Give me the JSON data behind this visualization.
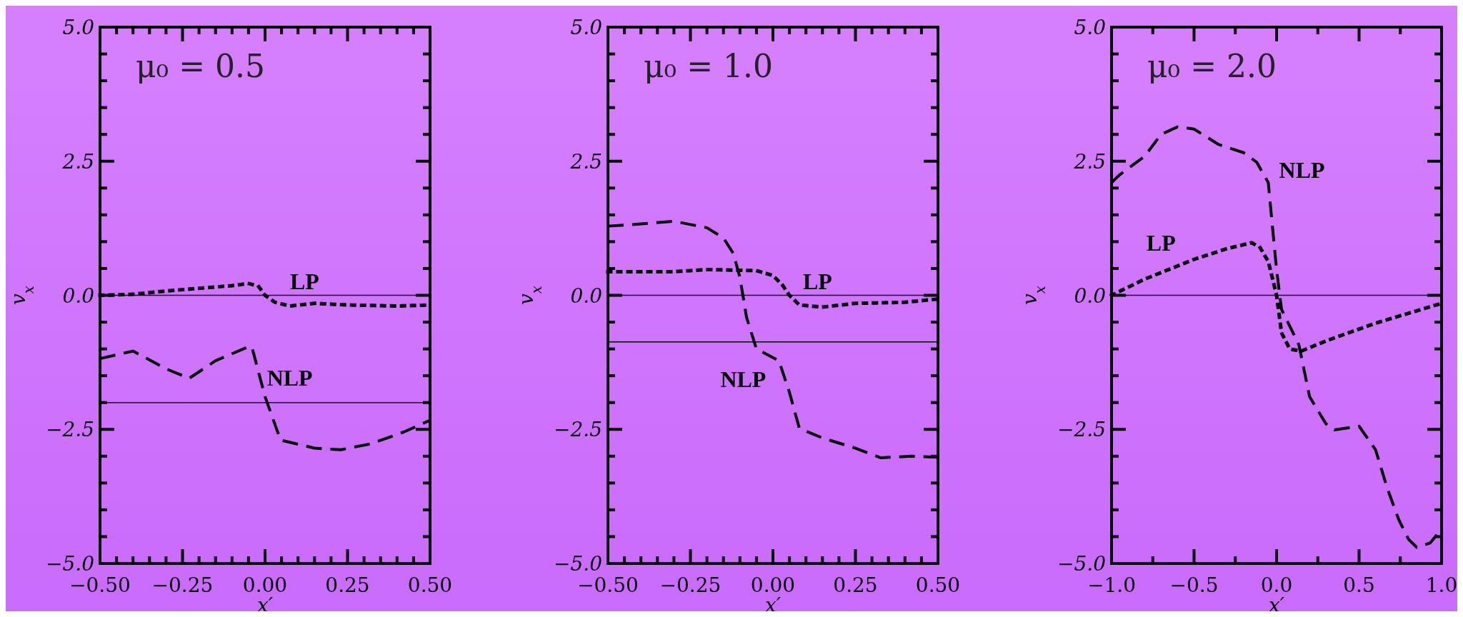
{
  "chart_data": [
    {
      "type": "line",
      "title": "μ₀ = 0.5",
      "xlabel": "x′",
      "ylabel": "v$_{x}$",
      "xlim": [
        -0.5,
        0.5
      ],
      "ylim": [
        -5,
        5
      ],
      "xticks": [
        {
          "value": -0.5,
          "label": "−0.50"
        },
        {
          "value": -0.45,
          "label": null
        },
        {
          "value": -0.4,
          "label": null
        },
        {
          "value": -0.35,
          "label": null
        },
        {
          "value": -0.3,
          "label": null
        },
        {
          "value": -0.25,
          "label": "−0.25"
        },
        {
          "value": -0.2,
          "label": null
        },
        {
          "value": -0.15,
          "label": null
        },
        {
          "value": -0.1,
          "label": null
        },
        {
          "value": -0.05,
          "label": null
        },
        {
          "value": 0,
          "label": "0.00"
        },
        {
          "value": 0.05,
          "label": null
        },
        {
          "value": 0.1,
          "label": null
        },
        {
          "value": 0.15,
          "label": null
        },
        {
          "value": 0.2,
          "label": null
        },
        {
          "value": 0.25,
          "label": "0.25"
        },
        {
          "value": 0.3,
          "label": null
        },
        {
          "value": 0.35,
          "label": null
        },
        {
          "value": 0.4,
          "label": null
        },
        {
          "value": 0.45,
          "label": null
        },
        {
          "value": 0.5,
          "label": "0.50"
        }
      ],
      "yticks": [
        {
          "value": -5,
          "label": "−5.0"
        },
        {
          "value": -4.5,
          "label": null
        },
        {
          "value": -4,
          "label": null
        },
        {
          "value": -3.5,
          "label": null
        },
        {
          "value": -3,
          "label": null
        },
        {
          "value": -2.5,
          "label": "−2.5"
        },
        {
          "value": -2,
          "label": null
        },
        {
          "value": -1.5,
          "label": null
        },
        {
          "value": -1,
          "label": null
        },
        {
          "value": -0.5,
          "label": null
        },
        {
          "value": 0,
          "label": "0.0"
        },
        {
          "value": 0.5,
          "label": null
        },
        {
          "value": 1,
          "label": null
        },
        {
          "value": 1.5,
          "label": null
        },
        {
          "value": 2,
          "label": null
        },
        {
          "value": 2.5,
          "label": "2.5"
        },
        {
          "value": 3,
          "label": null
        },
        {
          "value": 3.5,
          "label": null
        },
        {
          "value": 4,
          "label": null
        },
        {
          "value": 4.5,
          "label": null
        },
        {
          "value": 5,
          "label": "5.0"
        }
      ],
      "series": [
        {
          "name": "LP",
          "color": "#000000",
          "line_style": "dotted",
          "x": [
            -0.5,
            -0.4,
            -0.3,
            -0.2,
            -0.1,
            -0.05,
            -0.02,
            0,
            0.03,
            0.075,
            0.15,
            0.25,
            0.4,
            0.5
          ],
          "values": [
            0,
            0.02,
            0.08,
            0.13,
            0.18,
            0.22,
            0.17,
            0,
            -0.13,
            -0.2,
            -0.15,
            -0.18,
            -0.2,
            -0.18
          ]
        },
        {
          "name": "NLP",
          "color": "#000000",
          "line_style": "dashed",
          "x": [
            -0.5,
            -0.4,
            -0.3,
            -0.23,
            -0.15,
            -0.05,
            -0.04,
            0,
            0.047,
            0.15,
            0.23,
            0.32,
            0.42,
            0.5
          ],
          "values": [
            -1.18,
            -1.04,
            -1.37,
            -1.55,
            -1.22,
            -0.96,
            -0.96,
            -1.89,
            -2.7,
            -2.85,
            -2.88,
            -2.77,
            -2.55,
            -2.33
          ]
        }
      ],
      "ref_lines": [
        {
          "axis": "y",
          "value": 0,
          "color": "#000000"
        },
        {
          "axis": "y",
          "value": -2,
          "color": "#000000"
        }
      ]
    },
    {
      "type": "line",
      "title": "μ₀ = 1.0",
      "xlabel": "x′",
      "ylabel": "v$_{x}$",
      "xlim": [
        -0.5,
        0.5
      ],
      "ylim": [
        -5,
        5
      ],
      "xticks": [
        {
          "value": -0.5,
          "label": "−0.50"
        },
        {
          "value": -0.45,
          "label": null
        },
        {
          "value": -0.4,
          "label": null
        },
        {
          "value": -0.35,
          "label": null
        },
        {
          "value": -0.3,
          "label": null
        },
        {
          "value": -0.25,
          "label": "−0.25"
        },
        {
          "value": -0.2,
          "label": null
        },
        {
          "value": -0.15,
          "label": null
        },
        {
          "value": -0.1,
          "label": null
        },
        {
          "value": -0.05,
          "label": null
        },
        {
          "value": 0,
          "label": "0.00"
        },
        {
          "value": 0.05,
          "label": null
        },
        {
          "value": 0.1,
          "label": null
        },
        {
          "value": 0.15,
          "label": null
        },
        {
          "value": 0.2,
          "label": null
        },
        {
          "value": 0.25,
          "label": "0.25"
        },
        {
          "value": 0.3,
          "label": null
        },
        {
          "value": 0.35,
          "label": null
        },
        {
          "value": 0.4,
          "label": null
        },
        {
          "value": 0.45,
          "label": null
        },
        {
          "value": 0.5,
          "label": "0.50"
        }
      ],
      "yticks": [
        {
          "value": -5,
          "label": "−5.0"
        },
        {
          "value": -4.5,
          "label": null
        },
        {
          "value": -4,
          "label": null
        },
        {
          "value": -3.5,
          "label": null
        },
        {
          "value": -3,
          "label": null
        },
        {
          "value": -2.5,
          "label": "−2.5"
        },
        {
          "value": -2,
          "label": null
        },
        {
          "value": -1.5,
          "label": null
        },
        {
          "value": -1,
          "label": null
        },
        {
          "value": -0.5,
          "label": null
        },
        {
          "value": 0,
          "label": "0.0"
        },
        {
          "value": 0.5,
          "label": null
        },
        {
          "value": 1,
          "label": null
        },
        {
          "value": 1.5,
          "label": null
        },
        {
          "value": 2,
          "label": null
        },
        {
          "value": 2.5,
          "label": "2.5"
        },
        {
          "value": 3,
          "label": null
        },
        {
          "value": 3.5,
          "label": null
        },
        {
          "value": 4,
          "label": null
        },
        {
          "value": 4.5,
          "label": null
        },
        {
          "value": 5,
          "label": "5.0"
        }
      ],
      "series": [
        {
          "name": "LP",
          "color": "#000000",
          "line_style": "dotted",
          "x": [
            -0.5,
            -0.3,
            -0.2,
            -0.05,
            0,
            0.03,
            0.05,
            0.08,
            0.15,
            0.25,
            0.4,
            0.5
          ],
          "values": [
            0.44,
            0.44,
            0.48,
            0.46,
            0.37,
            0.18,
            0,
            -0.18,
            -0.22,
            -0.15,
            -0.13,
            -0.07
          ]
        },
        {
          "name": "NLP",
          "color": "#000000",
          "line_style": "dashed",
          "x": [
            -0.5,
            -0.4,
            -0.3,
            -0.2,
            -0.15,
            -0.12,
            -0.1,
            -0.08,
            -0.05,
            0.018,
            0.05,
            0.08,
            0.15,
            0.25,
            0.327,
            0.42,
            0.5
          ],
          "values": [
            1.29,
            1.33,
            1.38,
            1.26,
            1.07,
            0.78,
            0.33,
            -0.41,
            -1.0,
            -1.22,
            -1.81,
            -2.48,
            -2.66,
            -2.85,
            -3.03,
            -3.0,
            -3.02
          ]
        }
      ],
      "ref_lines": [
        {
          "axis": "y",
          "value": 0,
          "color": "#000000"
        },
        {
          "axis": "y",
          "value": -0.87,
          "color": "#000000"
        }
      ]
    },
    {
      "type": "line",
      "title": "μ₀ = 2.0",
      "xlabel": "x′",
      "ylabel": "v$_{x}$",
      "xlim": [
        -1,
        1
      ],
      "ylim": [
        -5,
        5
      ],
      "xticks": [
        {
          "value": -1,
          "label": "−1.0"
        },
        {
          "value": -0.75,
          "label": null
        },
        {
          "value": -0.5,
          "label": "−0.5"
        },
        {
          "value": -0.25,
          "label": null
        },
        {
          "value": 0,
          "label": "0.0"
        },
        {
          "value": 0.25,
          "label": null
        },
        {
          "value": 0.5,
          "label": "0.5"
        },
        {
          "value": 0.75,
          "label": null
        },
        {
          "value": 1,
          "label": "1.0"
        }
      ],
      "yticks": [
        {
          "value": -5,
          "label": "−5.0"
        },
        {
          "value": -4.5,
          "label": null
        },
        {
          "value": -4,
          "label": null
        },
        {
          "value": -3.5,
          "label": null
        },
        {
          "value": -3,
          "label": null
        },
        {
          "value": -2.5,
          "label": "−2.5"
        },
        {
          "value": -2,
          "label": null
        },
        {
          "value": -1.5,
          "label": null
        },
        {
          "value": -1,
          "label": null
        },
        {
          "value": -0.5,
          "label": null
        },
        {
          "value": 0,
          "label": "0.0"
        },
        {
          "value": 0.5,
          "label": null
        },
        {
          "value": 1,
          "label": null
        },
        {
          "value": 1.5,
          "label": null
        },
        {
          "value": 2,
          "label": null
        },
        {
          "value": 2.5,
          "label": "2.5"
        },
        {
          "value": 3,
          "label": null
        },
        {
          "value": 3.5,
          "label": null
        },
        {
          "value": 4,
          "label": null
        },
        {
          "value": 4.5,
          "label": null
        },
        {
          "value": 5,
          "label": "5.0"
        }
      ],
      "series": [
        {
          "name": "LP",
          "color": "#000000",
          "line_style": "dotted",
          "x": [
            -1,
            -0.8,
            -0.5,
            -0.3,
            -0.15,
            -0.1,
            -0.05,
            0,
            0.03,
            0.08,
            0.15,
            0.3,
            0.6,
            1
          ],
          "values": [
            0,
            0.3,
            0.67,
            0.87,
            0.98,
            0.89,
            0.63,
            0,
            -0.7,
            -1.0,
            -1.04,
            -0.85,
            -0.52,
            -0.15
          ]
        },
        {
          "name": "NLP",
          "color": "#000000",
          "line_style": "dashed",
          "x": [
            -1,
            -0.95,
            -0.8,
            -0.7,
            -0.6,
            -0.5,
            -0.35,
            -0.2,
            -0.12,
            -0.05,
            -0.03,
            0,
            0.03,
            0.135,
            0.2,
            0.3,
            0.35,
            0.5,
            0.6,
            0.67,
            0.74,
            0.8,
            0.85,
            0.93,
            1
          ],
          "values": [
            2.1,
            2.25,
            2.59,
            3.0,
            3.14,
            3.1,
            2.81,
            2.66,
            2.48,
            2.1,
            1.44,
            0.48,
            -0.26,
            -0.92,
            -1.89,
            -2.4,
            -2.51,
            -2.44,
            -2.88,
            -3.59,
            -4.18,
            -4.55,
            -4.7,
            -4.62,
            -4.36
          ]
        }
      ],
      "ref_lines": [
        {
          "axis": "y",
          "value": 0,
          "color": "#000000"
        }
      ]
    }
  ]
}
